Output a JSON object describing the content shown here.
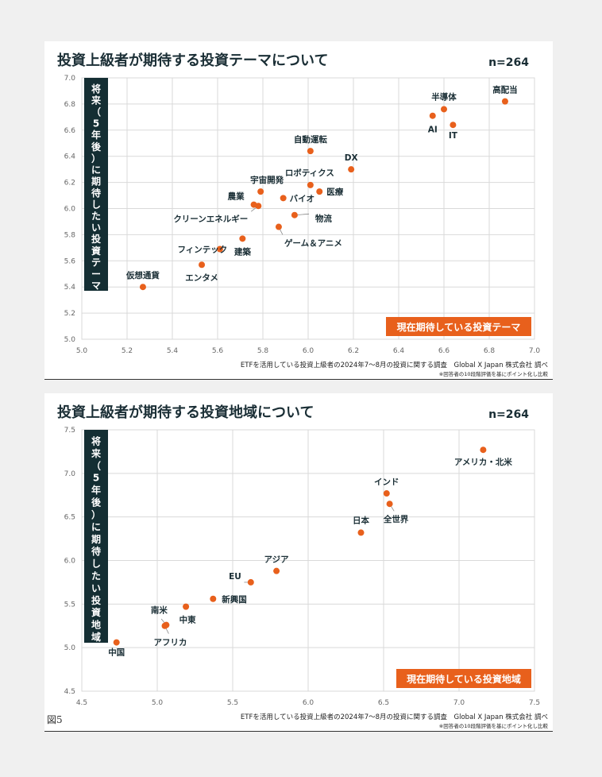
{
  "figure_label": "図5",
  "chart_data": [
    {
      "type": "scatter",
      "title": "投資上級者が期待する投資テーマについて",
      "sample": "n=264",
      "xlabel": "現在期待している投資テーマ",
      "ylabel": "将来（5年後）に期待したい投資テーマ",
      "xlim": [
        5.0,
        7.0
      ],
      "ylim": [
        5.0,
        7.0
      ],
      "xticks": [
        "5.0",
        "5.2",
        "5.4",
        "5.6",
        "5.8",
        "6.0",
        "6.2",
        "6.4",
        "6.6",
        "6.8",
        "7.0"
      ],
      "yticks": [
        "5.0",
        "5.2",
        "5.4",
        "5.6",
        "5.8",
        "6.0",
        "6.2",
        "6.4",
        "6.6",
        "6.8",
        "7.0"
      ],
      "grid": true,
      "marker_color": "#e8601c",
      "points": [
        {
          "label": "高配当",
          "x": 6.87,
          "y": 6.82
        },
        {
          "label": "半導体",
          "x": 6.6,
          "y": 6.76
        },
        {
          "label": "AI",
          "x": 6.55,
          "y": 6.71
        },
        {
          "label": "IT",
          "x": 6.64,
          "y": 6.64
        },
        {
          "label": "自動運転",
          "x": 6.01,
          "y": 6.44
        },
        {
          "label": "DX",
          "x": 6.19,
          "y": 6.3
        },
        {
          "label": "ロボティクス",
          "x": 6.01,
          "y": 6.18
        },
        {
          "label": "医療",
          "x": 6.05,
          "y": 6.13
        },
        {
          "label": "宇宙開発",
          "x": 5.79,
          "y": 6.13
        },
        {
          "label": "バイオ",
          "x": 5.89,
          "y": 6.08
        },
        {
          "label": "農業",
          "x": 5.76,
          "y": 6.03
        },
        {
          "label": "クリーンエネルギー",
          "x": 5.78,
          "y": 6.02
        },
        {
          "label": "物流",
          "x": 5.94,
          "y": 5.95
        },
        {
          "label": "ゲーム＆アニメ",
          "x": 5.87,
          "y": 5.86
        },
        {
          "label": "建築",
          "x": 5.71,
          "y": 5.77
        },
        {
          "label": "フィンテック",
          "x": 5.61,
          "y": 5.69
        },
        {
          "label": "エンタメ",
          "x": 5.53,
          "y": 5.57
        },
        {
          "label": "仮想通貨",
          "x": 5.27,
          "y": 5.4
        }
      ],
      "source": "ETFを活用している投資上級者の2024年7〜8月の投資に関する調査　Global X Japan 株式会社 調べ",
      "note": "※回答者の10段階評価を基にポイント化し比較"
    },
    {
      "type": "scatter",
      "title": "投資上級者が期待する投資地域について",
      "sample": "n=264",
      "xlabel": "現在期待している投資地域",
      "ylabel": "将来（5年後）に期待したい投資地域",
      "xlim": [
        4.5,
        7.5
      ],
      "ylim": [
        4.5,
        7.5
      ],
      "xticks": [
        "4.5",
        "5.0",
        "5.5",
        "6.0",
        "6.5",
        "7.0",
        "7.5"
      ],
      "yticks": [
        "4.5",
        "5.0",
        "5.5",
        "6.0",
        "6.5",
        "7.0",
        "7.5"
      ],
      "grid": true,
      "marker_color": "#e8601c",
      "points": [
        {
          "label": "アメリカ・北米",
          "x": 7.16,
          "y": 7.27
        },
        {
          "label": "インド",
          "x": 6.52,
          "y": 6.77
        },
        {
          "label": "全世界",
          "x": 6.54,
          "y": 6.65
        },
        {
          "label": "日本",
          "x": 6.35,
          "y": 6.32
        },
        {
          "label": "アジア",
          "x": 5.79,
          "y": 5.88
        },
        {
          "label": "EU",
          "x": 5.62,
          "y": 5.75
        },
        {
          "label": "新興国",
          "x": 5.37,
          "y": 5.56
        },
        {
          "label": "中東",
          "x": 5.19,
          "y": 5.47
        },
        {
          "label": "南米",
          "x": 5.06,
          "y": 5.26
        },
        {
          "label": "アフリカ",
          "x": 5.05,
          "y": 5.25
        },
        {
          "label": "中国",
          "x": 4.73,
          "y": 5.06
        }
      ],
      "source": "ETFを活用している投資上級者の2024年7〜8月の投資に関する調査　Global X Japan 株式会社 調べ",
      "note": "※回答者の10段階評価を基にポイント化し比較"
    }
  ]
}
